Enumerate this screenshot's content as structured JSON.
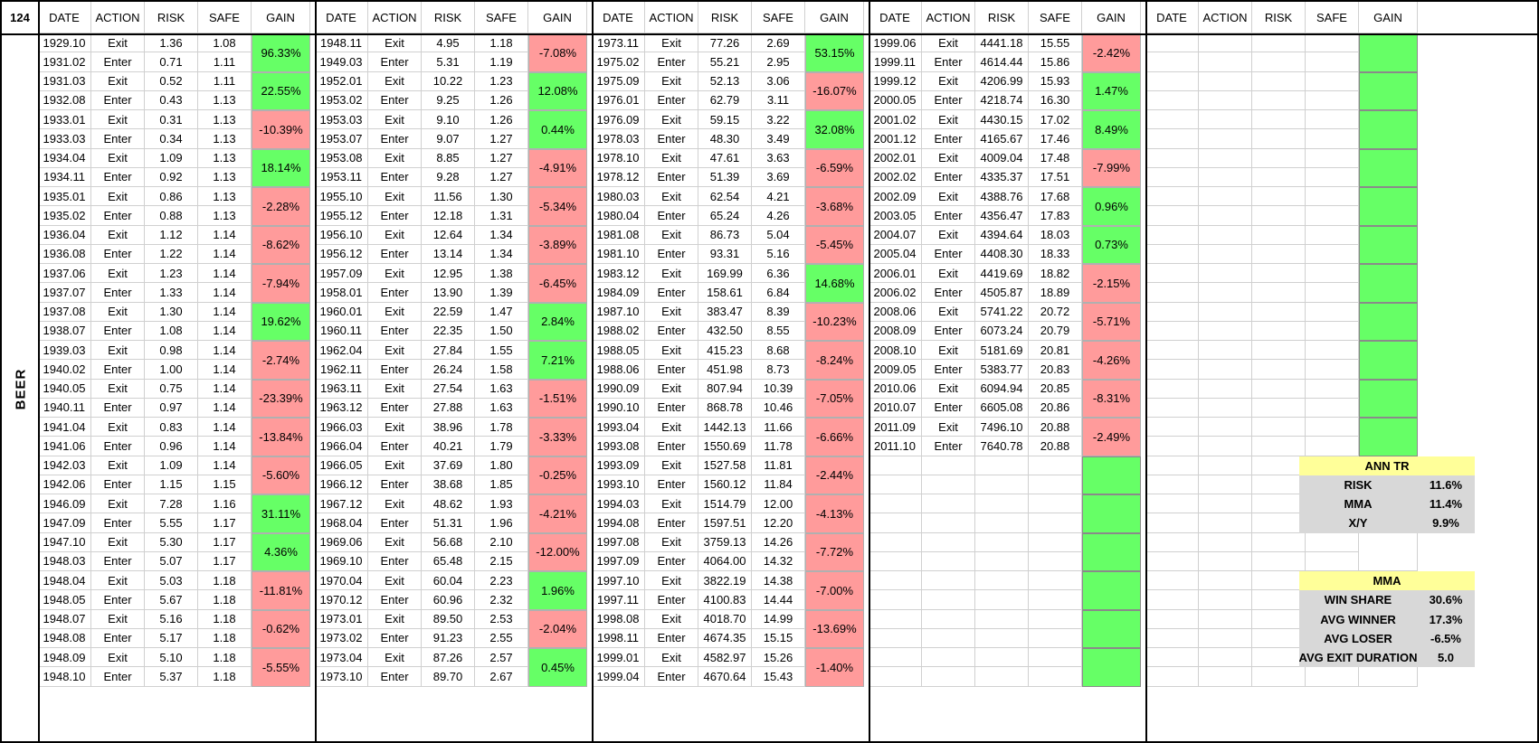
{
  "corner_label": "124",
  "side_label": "BEER",
  "headers": [
    "DATE",
    "ACTION",
    "RISK",
    "SAFE",
    "GAIN"
  ],
  "blocks": [
    {
      "rows": [
        [
          "1929.10",
          "Exit",
          "1.36",
          "1.08"
        ],
        [
          "1931.02",
          "Enter",
          "0.71",
          "1.11"
        ],
        [
          "1931.03",
          "Exit",
          "0.52",
          "1.11"
        ],
        [
          "1932.08",
          "Enter",
          "0.43",
          "1.13"
        ],
        [
          "1933.01",
          "Exit",
          "0.31",
          "1.13"
        ],
        [
          "1933.03",
          "Enter",
          "0.34",
          "1.13"
        ],
        [
          "1934.04",
          "Exit",
          "1.09",
          "1.13"
        ],
        [
          "1934.11",
          "Enter",
          "0.92",
          "1.13"
        ],
        [
          "1935.01",
          "Exit",
          "0.86",
          "1.13"
        ],
        [
          "1935.02",
          "Enter",
          "0.88",
          "1.13"
        ],
        [
          "1936.04",
          "Exit",
          "1.12",
          "1.14"
        ],
        [
          "1936.08",
          "Enter",
          "1.22",
          "1.14"
        ],
        [
          "1937.06",
          "Exit",
          "1.23",
          "1.14"
        ],
        [
          "1937.07",
          "Enter",
          "1.33",
          "1.14"
        ],
        [
          "1937.08",
          "Exit",
          "1.30",
          "1.14"
        ],
        [
          "1938.07",
          "Enter",
          "1.08",
          "1.14"
        ],
        [
          "1939.03",
          "Exit",
          "0.98",
          "1.14"
        ],
        [
          "1940.02",
          "Enter",
          "1.00",
          "1.14"
        ],
        [
          "1940.05",
          "Exit",
          "0.75",
          "1.14"
        ],
        [
          "1940.11",
          "Enter",
          "0.97",
          "1.14"
        ],
        [
          "1941.04",
          "Exit",
          "0.83",
          "1.14"
        ],
        [
          "1941.06",
          "Enter",
          "0.96",
          "1.14"
        ],
        [
          "1942.03",
          "Exit",
          "1.09",
          "1.14"
        ],
        [
          "1942.06",
          "Enter",
          "1.15",
          "1.15"
        ],
        [
          "1946.09",
          "Exit",
          "7.28",
          "1.16"
        ],
        [
          "1947.09",
          "Enter",
          "5.55",
          "1.17"
        ],
        [
          "1947.10",
          "Exit",
          "5.30",
          "1.17"
        ],
        [
          "1948.03",
          "Enter",
          "5.07",
          "1.17"
        ],
        [
          "1948.04",
          "Exit",
          "5.03",
          "1.18"
        ],
        [
          "1948.05",
          "Enter",
          "5.67",
          "1.18"
        ],
        [
          "1948.07",
          "Exit",
          "5.16",
          "1.18"
        ],
        [
          "1948.08",
          "Enter",
          "5.17",
          "1.18"
        ],
        [
          "1948.09",
          "Exit",
          "5.10",
          "1.18"
        ],
        [
          "1948.10",
          "Enter",
          "5.37",
          "1.18"
        ]
      ],
      "gains": [
        "96.33%",
        "22.55%",
        "-10.39%",
        "18.14%",
        "-2.28%",
        "-8.62%",
        "-7.94%",
        "19.62%",
        "-2.74%",
        "-23.39%",
        "-13.84%",
        "-5.60%",
        "31.11%",
        "4.36%",
        "-11.81%",
        "-0.62%",
        "-5.55%"
      ]
    },
    {
      "rows": [
        [
          "1948.11",
          "Exit",
          "4.95",
          "1.18"
        ],
        [
          "1949.03",
          "Enter",
          "5.31",
          "1.19"
        ],
        [
          "1952.01",
          "Exit",
          "10.22",
          "1.23"
        ],
        [
          "1953.02",
          "Enter",
          "9.25",
          "1.26"
        ],
        [
          "1953.03",
          "Exit",
          "9.10",
          "1.26"
        ],
        [
          "1953.07",
          "Enter",
          "9.07",
          "1.27"
        ],
        [
          "1953.08",
          "Exit",
          "8.85",
          "1.27"
        ],
        [
          "1953.11",
          "Enter",
          "9.28",
          "1.27"
        ],
        [
          "1955.10",
          "Exit",
          "11.56",
          "1.30"
        ],
        [
          "1955.12",
          "Enter",
          "12.18",
          "1.31"
        ],
        [
          "1956.10",
          "Exit",
          "12.64",
          "1.34"
        ],
        [
          "1956.12",
          "Enter",
          "13.14",
          "1.34"
        ],
        [
          "1957.09",
          "Exit",
          "12.95",
          "1.38"
        ],
        [
          "1958.01",
          "Enter",
          "13.90",
          "1.39"
        ],
        [
          "1960.01",
          "Exit",
          "22.59",
          "1.47"
        ],
        [
          "1960.11",
          "Enter",
          "22.35",
          "1.50"
        ],
        [
          "1962.04",
          "Exit",
          "27.84",
          "1.55"
        ],
        [
          "1962.11",
          "Enter",
          "26.24",
          "1.58"
        ],
        [
          "1963.11",
          "Exit",
          "27.54",
          "1.63"
        ],
        [
          "1963.12",
          "Enter",
          "27.88",
          "1.63"
        ],
        [
          "1966.03",
          "Exit",
          "38.96",
          "1.78"
        ],
        [
          "1966.04",
          "Enter",
          "40.21",
          "1.79"
        ],
        [
          "1966.05",
          "Exit",
          "37.69",
          "1.80"
        ],
        [
          "1966.12",
          "Enter",
          "38.68",
          "1.85"
        ],
        [
          "1967.12",
          "Exit",
          "48.62",
          "1.93"
        ],
        [
          "1968.04",
          "Enter",
          "51.31",
          "1.96"
        ],
        [
          "1969.06",
          "Exit",
          "56.68",
          "2.10"
        ],
        [
          "1969.10",
          "Enter",
          "65.48",
          "2.15"
        ],
        [
          "1970.04",
          "Exit",
          "60.04",
          "2.23"
        ],
        [
          "1970.12",
          "Enter",
          "60.96",
          "2.32"
        ],
        [
          "1973.01",
          "Exit",
          "89.50",
          "2.53"
        ],
        [
          "1973.02",
          "Enter",
          "91.23",
          "2.55"
        ],
        [
          "1973.04",
          "Exit",
          "87.26",
          "2.57"
        ],
        [
          "1973.10",
          "Enter",
          "89.70",
          "2.67"
        ]
      ],
      "gains": [
        "-7.08%",
        "12.08%",
        "0.44%",
        "-4.91%",
        "-5.34%",
        "-3.89%",
        "-6.45%",
        "2.84%",
        "7.21%",
        "-1.51%",
        "-3.33%",
        "-0.25%",
        "-4.21%",
        "-12.00%",
        "1.96%",
        "-2.04%",
        "0.45%"
      ]
    },
    {
      "rows": [
        [
          "1973.11",
          "Exit",
          "77.26",
          "2.69"
        ],
        [
          "1975.02",
          "Enter",
          "55.21",
          "2.95"
        ],
        [
          "1975.09",
          "Exit",
          "52.13",
          "3.06"
        ],
        [
          "1976.01",
          "Enter",
          "62.79",
          "3.11"
        ],
        [
          "1976.09",
          "Exit",
          "59.15",
          "3.22"
        ],
        [
          "1978.03",
          "Enter",
          "48.30",
          "3.49"
        ],
        [
          "1978.10",
          "Exit",
          "47.61",
          "3.63"
        ],
        [
          "1978.12",
          "Enter",
          "51.39",
          "3.69"
        ],
        [
          "1980.03",
          "Exit",
          "62.54",
          "4.21"
        ],
        [
          "1980.04",
          "Enter",
          "65.24",
          "4.26"
        ],
        [
          "1981.08",
          "Exit",
          "86.73",
          "5.04"
        ],
        [
          "1981.10",
          "Enter",
          "93.31",
          "5.16"
        ],
        [
          "1983.12",
          "Exit",
          "169.99",
          "6.36"
        ],
        [
          "1984.09",
          "Enter",
          "158.61",
          "6.84"
        ],
        [
          "1987.10",
          "Exit",
          "383.47",
          "8.39"
        ],
        [
          "1988.02",
          "Enter",
          "432.50",
          "8.55"
        ],
        [
          "1988.05",
          "Exit",
          "415.23",
          "8.68"
        ],
        [
          "1988.06",
          "Enter",
          "451.98",
          "8.73"
        ],
        [
          "1990.09",
          "Exit",
          "807.94",
          "10.39"
        ],
        [
          "1990.10",
          "Enter",
          "868.78",
          "10.46"
        ],
        [
          "1993.04",
          "Exit",
          "1442.13",
          "11.66"
        ],
        [
          "1993.08",
          "Enter",
          "1550.69",
          "11.78"
        ],
        [
          "1993.09",
          "Exit",
          "1527.58",
          "11.81"
        ],
        [
          "1993.10",
          "Enter",
          "1560.12",
          "11.84"
        ],
        [
          "1994.03",
          "Exit",
          "1514.79",
          "12.00"
        ],
        [
          "1994.08",
          "Enter",
          "1597.51",
          "12.20"
        ],
        [
          "1997.08",
          "Exit",
          "3759.13",
          "14.26"
        ],
        [
          "1997.09",
          "Enter",
          "4064.00",
          "14.32"
        ],
        [
          "1997.10",
          "Exit",
          "3822.19",
          "14.38"
        ],
        [
          "1997.11",
          "Enter",
          "4100.83",
          "14.44"
        ],
        [
          "1998.08",
          "Exit",
          "4018.70",
          "14.99"
        ],
        [
          "1998.11",
          "Enter",
          "4674.35",
          "15.15"
        ],
        [
          "1999.01",
          "Exit",
          "4582.97",
          "15.26"
        ],
        [
          "1999.04",
          "Enter",
          "4670.64",
          "15.43"
        ]
      ],
      "gains": [
        "53.15%",
        "-16.07%",
        "32.08%",
        "-6.59%",
        "-3.68%",
        "-5.45%",
        "14.68%",
        "-10.23%",
        "-8.24%",
        "-7.05%",
        "-6.66%",
        "-2.44%",
        "-4.13%",
        "-7.72%",
        "-7.00%",
        "-13.69%",
        "-1.40%"
      ]
    },
    {
      "rows": [
        [
          "1999.06",
          "Exit",
          "4441.18",
          "15.55"
        ],
        [
          "1999.11",
          "Enter",
          "4614.44",
          "15.86"
        ],
        [
          "1999.12",
          "Exit",
          "4206.99",
          "15.93"
        ],
        [
          "2000.05",
          "Enter",
          "4218.74",
          "16.30"
        ],
        [
          "2001.02",
          "Exit",
          "4430.15",
          "17.02"
        ],
        [
          "2001.12",
          "Enter",
          "4165.67",
          "17.46"
        ],
        [
          "2002.01",
          "Exit",
          "4009.04",
          "17.48"
        ],
        [
          "2002.02",
          "Enter",
          "4335.37",
          "17.51"
        ],
        [
          "2002.09",
          "Exit",
          "4388.76",
          "17.68"
        ],
        [
          "2003.05",
          "Enter",
          "4356.47",
          "17.83"
        ],
        [
          "2004.07",
          "Exit",
          "4394.64",
          "18.03"
        ],
        [
          "2005.04",
          "Enter",
          "4408.30",
          "18.33"
        ],
        [
          "2006.01",
          "Exit",
          "4419.69",
          "18.82"
        ],
        [
          "2006.02",
          "Enter",
          "4505.87",
          "18.89"
        ],
        [
          "2008.06",
          "Exit",
          "5741.22",
          "20.72"
        ],
        [
          "2008.09",
          "Enter",
          "6073.24",
          "20.79"
        ],
        [
          "2008.10",
          "Exit",
          "5181.69",
          "20.81"
        ],
        [
          "2009.05",
          "Enter",
          "5383.77",
          "20.83"
        ],
        [
          "2010.06",
          "Exit",
          "6094.94",
          "20.85"
        ],
        [
          "2010.07",
          "Enter",
          "6605.08",
          "20.86"
        ],
        [
          "2011.09",
          "Exit",
          "7496.10",
          "20.88"
        ],
        [
          "2011.10",
          "Enter",
          "7640.78",
          "20.88"
        ]
      ],
      "gains": [
        "-2.42%",
        "1.47%",
        "8.49%",
        "-7.99%",
        "0.96%",
        "0.73%",
        "-2.15%",
        "-5.71%",
        "-4.26%",
        "-8.31%",
        "-2.49%",
        "",
        "",
        "",
        "",
        "",
        ""
      ]
    },
    {
      "rows": [],
      "gains": [
        "",
        "",
        "",
        "",
        "",
        "",
        "",
        "",
        "",
        "",
        ""
      ]
    }
  ],
  "stats": {
    "ann_tr": {
      "title": "ANN TR",
      "rows": [
        [
          "RISK",
          "11.6%"
        ],
        [
          "MMA",
          "11.4%"
        ],
        [
          "X/Y",
          "9.9%"
        ]
      ]
    },
    "mma": {
      "title": "MMA",
      "rows": [
        [
          "WIN SHARE",
          "30.6%"
        ],
        [
          "AVG WINNER",
          "17.3%"
        ],
        [
          "AVG LOSER",
          "-6.5%"
        ],
        [
          "AVG EXIT DURATION",
          "5.0"
        ]
      ]
    }
  }
}
